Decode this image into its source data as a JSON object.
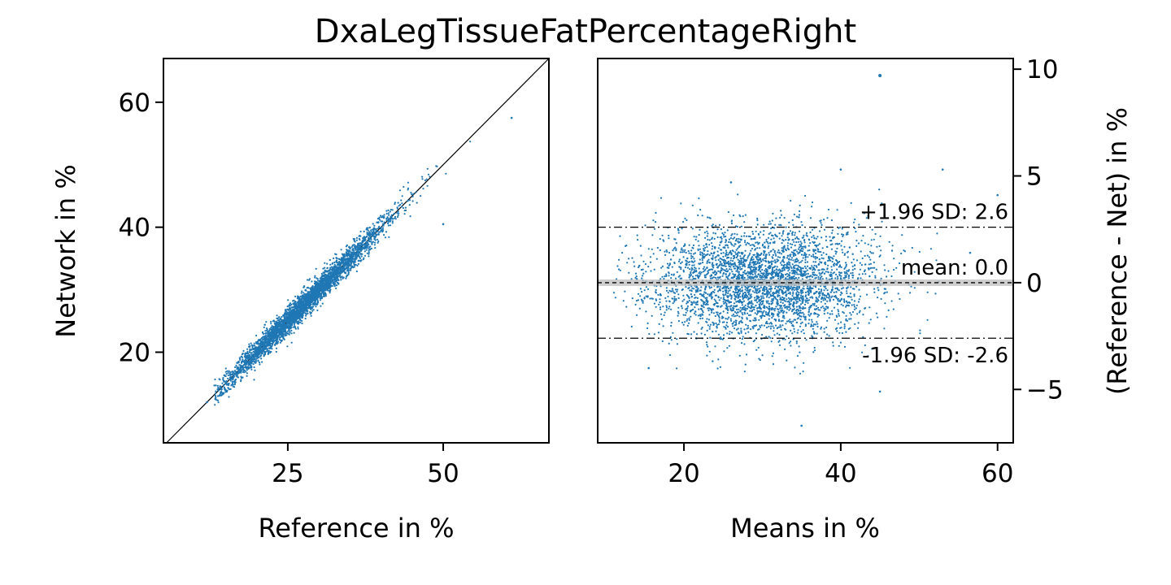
{
  "title": "DxaLegTissueFatPercentageRight",
  "chart_data": [
    {
      "type": "scatter",
      "panel": "left",
      "xlabel": "Reference in %",
      "ylabel": "Network in %",
      "xlim": [
        5,
        67
      ],
      "ylim": [
        5.5,
        67
      ],
      "xticks": [
        25,
        50
      ],
      "yticks": [
        20,
        40,
        60
      ],
      "identity_line": true,
      "point_color": "#1f77b4",
      "points_summary": {
        "count_approx": 4000,
        "x_range": [
          11,
          62
        ],
        "trend": "network ≈ reference, tight spread about identity line"
      },
      "outliers": [
        {
          "x": 61,
          "y": 57.5
        },
        {
          "x": 50,
          "y": 40.5
        },
        {
          "x": 12,
          "y": 12
        }
      ]
    },
    {
      "type": "scatter",
      "panel": "right",
      "xlabel": "Means in %",
      "ylabel": "(Reference - Net) in %",
      "ylabel_side": "right",
      "xlim": [
        9,
        62
      ],
      "ylim": [
        -7.5,
        10.5
      ],
      "xticks": [
        20,
        40,
        60
      ],
      "yticks": [
        -5,
        0,
        5,
        10
      ],
      "ytick_labels": [
        "−5",
        "0",
        "5",
        "10"
      ],
      "point_color": "#1f77b4",
      "mean_line": {
        "value": 0.0,
        "label": "mean: 0.0"
      },
      "upper_limit": {
        "value": 2.6,
        "label": "+1.96 SD: 2.6"
      },
      "lower_limit": {
        "value": -2.6,
        "label": "-1.96 SD: -2.6"
      },
      "points_summary": {
        "count_approx": 4000,
        "x_range": [
          11,
          58
        ],
        "spread_sd": 1.33
      },
      "outliers": [
        {
          "x": 45,
          "y": 9.7
        },
        {
          "x": 35,
          "y": -6.7
        },
        {
          "x": 53,
          "y": 5.3
        },
        {
          "x": 40,
          "y": 5.3
        },
        {
          "x": 26,
          "y": 4.7
        },
        {
          "x": 45,
          "y": -5.1
        },
        {
          "x": 15.5,
          "y": -4.0
        },
        {
          "x": 60,
          "y": 4.1
        },
        {
          "x": 56.5,
          "y": 1.4
        }
      ]
    }
  ]
}
